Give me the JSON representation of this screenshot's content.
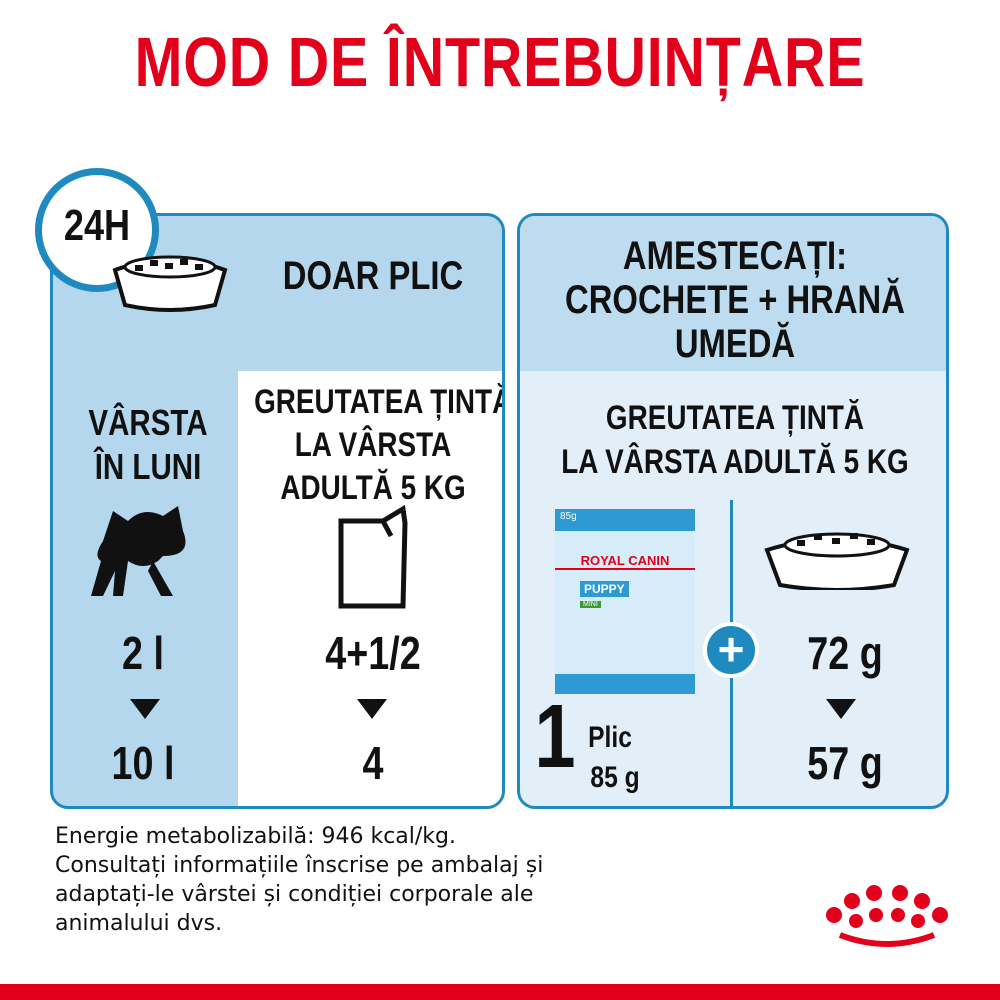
{
  "title": "MOD DE ÎNTREBUINȚARE",
  "left_panel": {
    "clock_label": "24H",
    "header": "DOAR PLIC",
    "age_label_1": "VÂRSTA",
    "age_label_2": "ÎN LUNI",
    "target_1": "GREUTATEA ȚINTĂ",
    "target_2": "LA VÂRSTA",
    "target_3": "ADULTĂ 5 KG",
    "age_from": "2 l",
    "age_to": "10 l",
    "pouches_from": "4+1/2",
    "pouches_to": "4"
  },
  "right_panel": {
    "header_1": "AMESTECAȚI:",
    "header_2": "CROCHETE + HRANĂ",
    "header_3": "UMEDĂ",
    "target_1": "GREUTATEA ȚINTĂ",
    "target_2": "LA VÂRSTA ADULTĂ 5 KG",
    "pouch_count": "1",
    "pouch_unit": "Plic",
    "pouch_weight": "85 g",
    "kibble_from": "72 g",
    "kibble_to": "57 g",
    "pouch_image": {
      "weight": "85g",
      "brand": "ROYAL CANIN",
      "product": "PUPPY",
      "variant": "MINI"
    }
  },
  "note": [
    "Energie metabolizabilă: 946 kcal/kg.",
    "Consultați informațiile înscrise pe ambalaj și",
    "adaptați-le vârstei și condiției corporale ale",
    "animalului dvs."
  ],
  "colors": {
    "brand_red": "#e2001a",
    "blue": "#1f8ac0",
    "panel_blue": "#b5d7ed"
  }
}
